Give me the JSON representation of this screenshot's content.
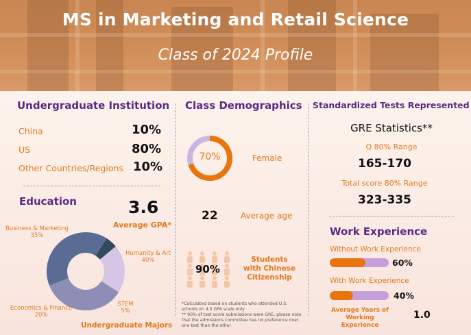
{
  "header": {
    "title": "MS in Marketing and Retail Science",
    "subtitle": "Class of 2024 Profile"
  },
  "undergrad_institution": {
    "heading": "Undergraduate Institution",
    "rows": [
      {
        "label": "China",
        "value": "10%"
      },
      {
        "label": "US",
        "value": "80%"
      },
      {
        "label": "Other Countries/Regions",
        "value": "10%"
      }
    ]
  },
  "education": {
    "heading": "Education",
    "gpa_value": "3.6",
    "gpa_label": "Average GPA*",
    "majors_title": "Undergraduate Majors",
    "majors": [
      {
        "label": "Business & Marketing",
        "pct": "35%",
        "value": 35,
        "color": "#8e8db5"
      },
      {
        "label": "Humanity & Art",
        "pct": "40%",
        "value": 40,
        "color": "#5a6b94"
      },
      {
        "label": "STEM",
        "pct": "5%",
        "value": 5,
        "color": "#34495e"
      },
      {
        "label": "Economics & Finance",
        "pct": "20%",
        "value": 20,
        "color": "#d6c6e6"
      }
    ]
  },
  "demographics": {
    "heading": "Class Demographics",
    "female_pct": "70%",
    "female_value": 70,
    "female_label": "Female",
    "age_value": "22",
    "age_label": "Average age",
    "citizen_pct": "90%",
    "citizen_value": 90,
    "citizen_label_lines": [
      "Students",
      "with Chinese",
      "Citizenship"
    ]
  },
  "tests": {
    "heading": "Standardized Tests Represented",
    "gre_title": "GRE Statistics**",
    "q_label": "Q 80% Range",
    "q_value": "165-170",
    "total_label": "Total score 80% Range",
    "total_value": "323-335"
  },
  "work": {
    "heading": "Work Experience",
    "without_label": "Without Work Experience",
    "without_pct": "60%",
    "without_value": 0.6,
    "with_label": "With Work Experience",
    "with_pct": "40%",
    "with_value": 0.4,
    "avg_label_lines": [
      "Average Years of",
      "Working Experience"
    ],
    "avg_value": "1.0"
  },
  "footnotes": [
    "*Calculated based on students who attended U.S.",
    "schools on 4.0 GPA scale only",
    "** 90% of test score submissions were GRE, please note",
    "that the admissions committee has no preference over",
    "one test than the other"
  ],
  "colors": {
    "purple": "#5b2a86",
    "orange": "#e07a1f",
    "bar_orange": "#e8760e",
    "bar_lilac": "#c6a0dc",
    "ring_light": "#c9b6e4"
  }
}
